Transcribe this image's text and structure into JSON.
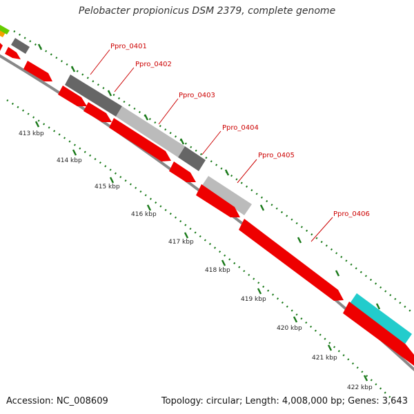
{
  "header": {
    "title": "Pelobacter propionicus DSM 2379, complete genome"
  },
  "footer": {
    "accession": "Accession: NC_008609",
    "summary": "Topology: circular; Length: 4,008,000 bp; Genes: 3,643"
  },
  "colors": {
    "cds": "#ee0000",
    "label": "#cc0000",
    "dark_gray": "#666666",
    "light_gray": "#bbbbbb",
    "cyan": "#22cccc",
    "tick_green": "#1a7a1a",
    "backbone": "#888888"
  },
  "scale_ticks": [
    {
      "label": "413 kbp"
    },
    {
      "label": "414 kbp"
    },
    {
      "label": "415 kbp"
    },
    {
      "label": "416 kbp"
    },
    {
      "label": "417 kbp"
    },
    {
      "label": "418 kbp"
    },
    {
      "label": "419 kbp"
    },
    {
      "label": "420 kbp"
    },
    {
      "label": "421 kbp"
    },
    {
      "label": "422 kbp"
    }
  ],
  "gene_labels": [
    {
      "label": "Ppro_0401"
    },
    {
      "label": "Ppro_0402"
    },
    {
      "label": "Ppro_0403"
    },
    {
      "label": "Ppro_0404"
    },
    {
      "label": "Ppro_0405"
    },
    {
      "label": "Ppro_0406"
    }
  ]
}
